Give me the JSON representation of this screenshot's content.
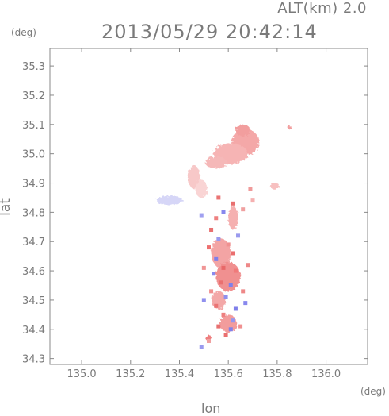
{
  "header": {
    "altitude_label": "ALT(km) 2.0",
    "timestamp": "2013/05/29 20:42:14"
  },
  "axes": {
    "y_unit": "(deg)",
    "x_unit": "(deg)",
    "x_label": "lon",
    "y_label": "lat"
  },
  "chart_data": {
    "type": "heatmap",
    "title": "2013/05/29 20:42:14",
    "xlabel": "lon",
    "ylabel": "lat",
    "xlim": [
      134.87,
      136.17
    ],
    "ylim": [
      34.28,
      35.36
    ],
    "x_ticks": [
      "135.0",
      "135.2",
      "135.4",
      "135.6",
      "135.8",
      "136.0"
    ],
    "y_ticks": [
      "34.3",
      "34.4",
      "34.5",
      "34.6",
      "34.7",
      "34.8",
      "34.9",
      "35.0",
      "35.1",
      "35.2",
      "35.3"
    ],
    "grid": false,
    "colors": {
      "positive": "#f08080",
      "positive_light": "#f7c4c4",
      "negative": "#8c8cf0",
      "negative_light": "#c9c9f5"
    },
    "regions": [
      {
        "lon": 135.67,
        "lat": 35.04,
        "rx": 0.055,
        "ry": 0.045,
        "color": "#f4a8a8"
      },
      {
        "lon": 135.61,
        "lat": 35.0,
        "rx": 0.07,
        "ry": 0.035,
        "color": "#f6b4b4"
      },
      {
        "lon": 135.55,
        "lat": 34.97,
        "rx": 0.045,
        "ry": 0.02,
        "color": "#f5b8b8"
      },
      {
        "lon": 135.66,
        "lat": 35.08,
        "rx": 0.03,
        "ry": 0.02,
        "color": "#f29e9e"
      },
      {
        "lon": 135.46,
        "lat": 34.92,
        "rx": 0.025,
        "ry": 0.04,
        "color": "#f7c8c8"
      },
      {
        "lon": 135.49,
        "lat": 34.88,
        "rx": 0.025,
        "ry": 0.03,
        "color": "#f9d4d4"
      },
      {
        "lon": 135.79,
        "lat": 34.89,
        "rx": 0.018,
        "ry": 0.012,
        "color": "#f7c0c0"
      },
      {
        "lon": 135.85,
        "lat": 35.09,
        "rx": 0.008,
        "ry": 0.006,
        "color": "#f2a0a0"
      },
      {
        "lon": 135.36,
        "lat": 34.84,
        "rx": 0.055,
        "ry": 0.016,
        "color": "#d6d6f7"
      },
      {
        "lon": 135.62,
        "lat": 34.78,
        "rx": 0.02,
        "ry": 0.04,
        "color": "#f5b0b0"
      },
      {
        "lon": 135.57,
        "lat": 34.66,
        "rx": 0.04,
        "ry": 0.05,
        "color": "#f3a4a4"
      },
      {
        "lon": 135.6,
        "lat": 34.58,
        "rx": 0.05,
        "ry": 0.05,
        "color": "#f09090"
      },
      {
        "lon": 135.56,
        "lat": 34.5,
        "rx": 0.03,
        "ry": 0.03,
        "color": "#f3a8a8"
      },
      {
        "lon": 135.6,
        "lat": 34.42,
        "rx": 0.035,
        "ry": 0.03,
        "color": "#f29c9c"
      },
      {
        "lon": 135.52,
        "lat": 34.37,
        "rx": 0.012,
        "ry": 0.01,
        "color": "#ee7e7e"
      }
    ],
    "speckles": [
      {
        "lon": 135.62,
        "lat": 34.83,
        "color": "#e87070"
      },
      {
        "lon": 135.58,
        "lat": 34.8,
        "color": "#8888ee"
      },
      {
        "lon": 135.55,
        "lat": 34.78,
        "color": "#ee8080"
      },
      {
        "lon": 135.66,
        "lat": 34.81,
        "color": "#f0a0a0"
      },
      {
        "lon": 135.53,
        "lat": 34.74,
        "color": "#e87070"
      },
      {
        "lon": 135.56,
        "lat": 34.71,
        "color": "#9999ee"
      },
      {
        "lon": 135.52,
        "lat": 34.68,
        "color": "#ee7070"
      },
      {
        "lon": 135.6,
        "lat": 34.69,
        "color": "#f09090"
      },
      {
        "lon": 135.55,
        "lat": 34.64,
        "color": "#7f7fea"
      },
      {
        "lon": 135.62,
        "lat": 34.66,
        "color": "#ea6e6e"
      },
      {
        "lon": 135.58,
        "lat": 34.61,
        "color": "#e86868"
      },
      {
        "lon": 135.54,
        "lat": 34.59,
        "color": "#8a8aee"
      },
      {
        "lon": 135.63,
        "lat": 34.6,
        "color": "#f07a7a"
      },
      {
        "lon": 135.57,
        "lat": 34.56,
        "color": "#ea7070"
      },
      {
        "lon": 135.61,
        "lat": 34.55,
        "color": "#8080ea"
      },
      {
        "lon": 135.53,
        "lat": 34.53,
        "color": "#f09090"
      },
      {
        "lon": 135.66,
        "lat": 34.53,
        "color": "#ee8888"
      },
      {
        "lon": 135.59,
        "lat": 34.51,
        "color": "#9090ee"
      },
      {
        "lon": 135.55,
        "lat": 34.48,
        "color": "#ea7474"
      },
      {
        "lon": 135.63,
        "lat": 34.47,
        "color": "#7f7fea"
      },
      {
        "lon": 135.67,
        "lat": 34.49,
        "color": "#8888ee"
      },
      {
        "lon": 135.58,
        "lat": 34.45,
        "color": "#ee8080"
      },
      {
        "lon": 135.62,
        "lat": 34.43,
        "color": "#9595ee"
      },
      {
        "lon": 135.56,
        "lat": 34.41,
        "color": "#e87070"
      },
      {
        "lon": 135.61,
        "lat": 34.4,
        "color": "#8080ea"
      },
      {
        "lon": 135.65,
        "lat": 34.41,
        "color": "#f09090"
      },
      {
        "lon": 135.59,
        "lat": 34.38,
        "color": "#ea7070"
      },
      {
        "lon": 135.52,
        "lat": 34.36,
        "color": "#f0a0a0"
      },
      {
        "lon": 135.49,
        "lat": 34.34,
        "color": "#9a9aee"
      },
      {
        "lon": 135.5,
        "lat": 34.61,
        "color": "#f09595"
      },
      {
        "lon": 135.64,
        "lat": 34.72,
        "color": "#9a9aee"
      },
      {
        "lon": 135.68,
        "lat": 34.62,
        "color": "#ee8888"
      },
      {
        "lon": 135.5,
        "lat": 34.5,
        "color": "#9090ee"
      },
      {
        "lon": 135.7,
        "lat": 34.84,
        "color": "#f5b0b0"
      },
      {
        "lon": 135.49,
        "lat": 34.79,
        "color": "#a0a0f0"
      },
      {
        "lon": 135.69,
        "lat": 34.88,
        "color": "#f09a9a"
      },
      {
        "lon": 135.56,
        "lat": 34.85,
        "color": "#ea7474"
      }
    ]
  }
}
